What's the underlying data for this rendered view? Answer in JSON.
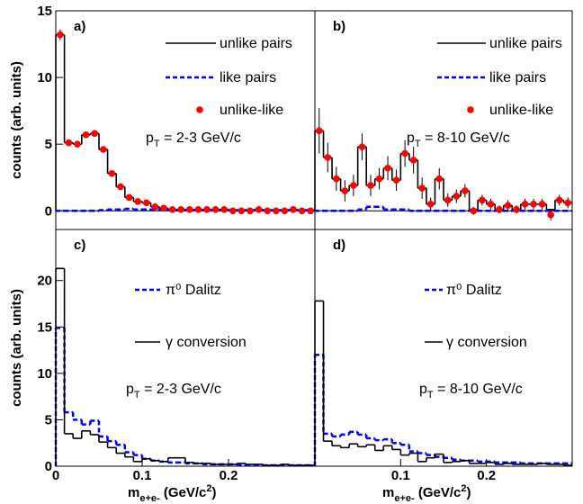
{
  "chart_data": [
    {
      "type": "histogram",
      "panel_label": "a)",
      "annotation": [
        "p",
        "T",
        " = 2-3 GeV/c"
      ],
      "ylabel": "counts (arb. units)",
      "bins": [
        0,
        0.01,
        0.02,
        0.03,
        0.04,
        0.05,
        0.06,
        0.07,
        0.08,
        0.09,
        0.1,
        0.11,
        0.12,
        0.13,
        0.14,
        0.15,
        0.16,
        0.17,
        0.18,
        0.19,
        0.2,
        0.21,
        0.22,
        0.23,
        0.24,
        0.25,
        0.26,
        0.27,
        0.28,
        0.29,
        0.3
      ],
      "xlim": [
        0,
        0.3
      ],
      "ylim": [
        -1.4,
        15
      ],
      "yticks": [
        0,
        5,
        10,
        15
      ],
      "zero_line": true,
      "series": [
        {
          "name": "unlike pairs",
          "color": "#000000",
          "linestyle": "solid",
          "values": [
            13.2,
            5.1,
            5.0,
            5.7,
            5.8,
            4.6,
            2.8,
            1.8,
            1.0,
            0.7,
            0.6,
            0.3,
            0.2,
            0.1,
            0.1,
            0.1,
            0.1,
            0.1,
            0.1,
            0.1,
            0.0,
            0.0,
            0.0,
            0.1,
            0.0,
            0.0,
            0.0,
            0.1,
            0.0,
            0.0
          ]
        },
        {
          "name": "like pairs",
          "color": "#0000ff",
          "linestyle": "dashed",
          "values": [
            0,
            0,
            0,
            0,
            0,
            0.05,
            0.1,
            0.1,
            0.15,
            0.1,
            0.1,
            0.1,
            0.1,
            0.05,
            0.05,
            0.05,
            0.05,
            0.05,
            0.05,
            0.05,
            0.05,
            0.05,
            0.05,
            0.05,
            0.05,
            0.05,
            0.05,
            0.05,
            0.05,
            0.05
          ]
        },
        {
          "name": "unlike-like",
          "color": "#ff0000",
          "marker": "o",
          "values": [
            13.2,
            5.1,
            5.0,
            5.7,
            5.8,
            4.6,
            2.8,
            1.8,
            1.0,
            0.7,
            0.6,
            0.3,
            0.2,
            0.1,
            0.1,
            0.1,
            0.1,
            0.1,
            0.1,
            0.1,
            0.0,
            0.0,
            0.0,
            0.1,
            0.0,
            0.0,
            0.0,
            0.1,
            0.0,
            0.0
          ],
          "errors": [
            0.4,
            0.2,
            0.2,
            0.2,
            0.2,
            0.2,
            0.2,
            0.15,
            0.1,
            0.1,
            0.1,
            0.1,
            0.1,
            0.1,
            0.1,
            0.1,
            0.1,
            0.1,
            0.1,
            0.1,
            0.1,
            0.1,
            0.1,
            0.1,
            0.1,
            0.1,
            0.1,
            0.1,
            0.1,
            0.1
          ]
        }
      ]
    },
    {
      "type": "histogram",
      "panel_label": "b)",
      "annotation": [
        "p",
        "T",
        " = 8-10 GeV/c"
      ],
      "bins": [
        0,
        0.01,
        0.02,
        0.03,
        0.04,
        0.05,
        0.06,
        0.07,
        0.08,
        0.09,
        0.1,
        0.11,
        0.12,
        0.13,
        0.14,
        0.15,
        0.16,
        0.17,
        0.18,
        0.19,
        0.2,
        0.21,
        0.22,
        0.23,
        0.24,
        0.25,
        0.26,
        0.27,
        0.28,
        0.29,
        0.3
      ],
      "xlim": [
        0,
        0.3
      ],
      "ylim": [
        -1.4,
        15
      ],
      "zero_line": true,
      "series": [
        {
          "name": "unlike pairs",
          "color": "#000000",
          "linestyle": "solid",
          "values": [
            6.0,
            4.0,
            2.4,
            1.5,
            1.9,
            4.8,
            1.9,
            2.4,
            3.2,
            2.3,
            4.3,
            3.8,
            1.7,
            0.5,
            2.4,
            0.8,
            1.1,
            1.5,
            0.1,
            0.8,
            0.5,
            0.1,
            0.4,
            0.1,
            0.5,
            0.5,
            0.5,
            0.1,
            0.8,
            0.6
          ]
        },
        {
          "name": "like pairs",
          "color": "#0000ff",
          "linestyle": "dashed",
          "values": [
            0,
            0,
            0,
            0,
            0,
            0.1,
            0.3,
            0.3,
            0.1,
            0.1,
            0.1,
            0,
            0,
            0,
            0,
            0,
            0,
            0,
            0,
            0,
            0,
            0,
            0,
            0,
            0,
            0,
            0,
            0,
            0,
            0
          ]
        },
        {
          "name": "unlike-like",
          "color": "#ff0000",
          "marker": "o",
          "values": [
            6.0,
            4.0,
            2.4,
            1.5,
            1.9,
            4.8,
            1.9,
            2.4,
            3.2,
            2.3,
            4.3,
            3.8,
            1.7,
            0.5,
            2.4,
            0.8,
            1.1,
            1.5,
            0.0,
            0.8,
            0.5,
            0.1,
            0.4,
            0.1,
            0.5,
            0.5,
            0.5,
            -0.3,
            0.8,
            0.6
          ],
          "errors": [
            1.7,
            1.1,
            0.9,
            0.8,
            0.8,
            1.0,
            0.8,
            0.8,
            0.9,
            0.8,
            1.0,
            1.0,
            0.8,
            0.5,
            0.8,
            0.5,
            0.5,
            0.5,
            0.3,
            0.4,
            0.4,
            0.3,
            0.4,
            0.3,
            0.4,
            0.4,
            0.4,
            0.4,
            0.4,
            0.4
          ]
        }
      ]
    },
    {
      "type": "histogram",
      "panel_label": "c)",
      "annotation": [
        "p",
        "T",
        " = 2-3 GeV/c"
      ],
      "ylabel": "counts (arb. units)",
      "xlabel": [
        "m",
        "e+e-",
        " (GeV/c",
        "2",
        ")"
      ],
      "bins": [
        0,
        0.01,
        0.02,
        0.03,
        0.04,
        0.05,
        0.06,
        0.07,
        0.08,
        0.09,
        0.1,
        0.11,
        0.12,
        0.13,
        0.14,
        0.15,
        0.16,
        0.17,
        0.18,
        0.19,
        0.2,
        0.21,
        0.22,
        0.23,
        0.24,
        0.25,
        0.26,
        0.27,
        0.28,
        0.29,
        0.3
      ],
      "xlim": [
        0,
        0.3
      ],
      "ylim": [
        0,
        25.5
      ],
      "yticks": [
        0,
        5,
        10,
        15,
        20
      ],
      "xticks": [
        0,
        0.1,
        0.2
      ],
      "series": [
        {
          "name": "π⁰ Dalitz",
          "color": "#0000ff",
          "linestyle": "dashed",
          "values": [
            14.9,
            5.8,
            5.0,
            4.5,
            4.9,
            3.2,
            2.7,
            2.3,
            1.5,
            1.2,
            0.8,
            0.6,
            0.5,
            0.4,
            0.4,
            0.3,
            0.3,
            0.2,
            0.2,
            0.2,
            0.2,
            0.1,
            0.1,
            0.1,
            0.1,
            0.1,
            0.1,
            0.1,
            0.1,
            0.1
          ]
        },
        {
          "name": "γ conversion",
          "color": "#000000",
          "linestyle": "solid",
          "values": [
            21.3,
            3.5,
            3.0,
            3.8,
            3.4,
            2.6,
            2.0,
            1.4,
            1.0,
            0.5,
            0.8,
            0.6,
            0.5,
            0.9,
            0.9,
            0.4,
            0.3,
            0.3,
            0.2,
            0.2,
            0.2,
            0.3,
            0.2,
            0.2,
            0.1,
            0.1,
            0.2,
            0.1,
            0.1,
            0.1
          ]
        }
      ]
    },
    {
      "type": "histogram",
      "panel_label": "d)",
      "annotation": [
        "p",
        "T",
        " = 8-10 GeV/c"
      ],
      "xlabel": [
        "m",
        "e+e-",
        " (GeV/c",
        "2",
        ")"
      ],
      "bins": [
        0,
        0.01,
        0.02,
        0.03,
        0.04,
        0.05,
        0.06,
        0.07,
        0.08,
        0.09,
        0.1,
        0.11,
        0.12,
        0.13,
        0.14,
        0.15,
        0.16,
        0.17,
        0.18,
        0.19,
        0.2,
        0.21,
        0.22,
        0.23,
        0.24,
        0.25,
        0.26,
        0.27,
        0.28,
        0.29,
        0.3
      ],
      "xlim": [
        0,
        0.3
      ],
      "ylim": [
        0,
        25.5
      ],
      "xticks": [
        0.1,
        0.2
      ],
      "series": [
        {
          "name": "π⁰ Dalitz",
          "color": "#0000ff",
          "linestyle": "dashed",
          "values": [
            12.0,
            3.5,
            3.2,
            3.4,
            3.7,
            3.4,
            3.0,
            2.8,
            2.9,
            2.5,
            2.3,
            1.6,
            1.4,
            1.2,
            1.0,
            0.9,
            0.7,
            0.6,
            0.6,
            0.5,
            0.5,
            0.4,
            0.4,
            0.4,
            0.3,
            0.3,
            0.3,
            0.3,
            0.3,
            0.3
          ]
        },
        {
          "name": "γ conversion",
          "color": "#000000",
          "linestyle": "solid",
          "values": [
            17.8,
            2.7,
            2.2,
            2.0,
            2.4,
            2.1,
            2.3,
            1.7,
            2.2,
            1.8,
            1.2,
            1.4,
            0.5,
            0.9,
            1.3,
            0.4,
            0.5,
            0.6,
            0.3,
            0.3,
            0.4,
            0.2,
            0.3,
            0.2,
            0.2,
            0.2,
            0.3,
            0.2,
            0.2,
            0.1
          ]
        }
      ]
    }
  ]
}
